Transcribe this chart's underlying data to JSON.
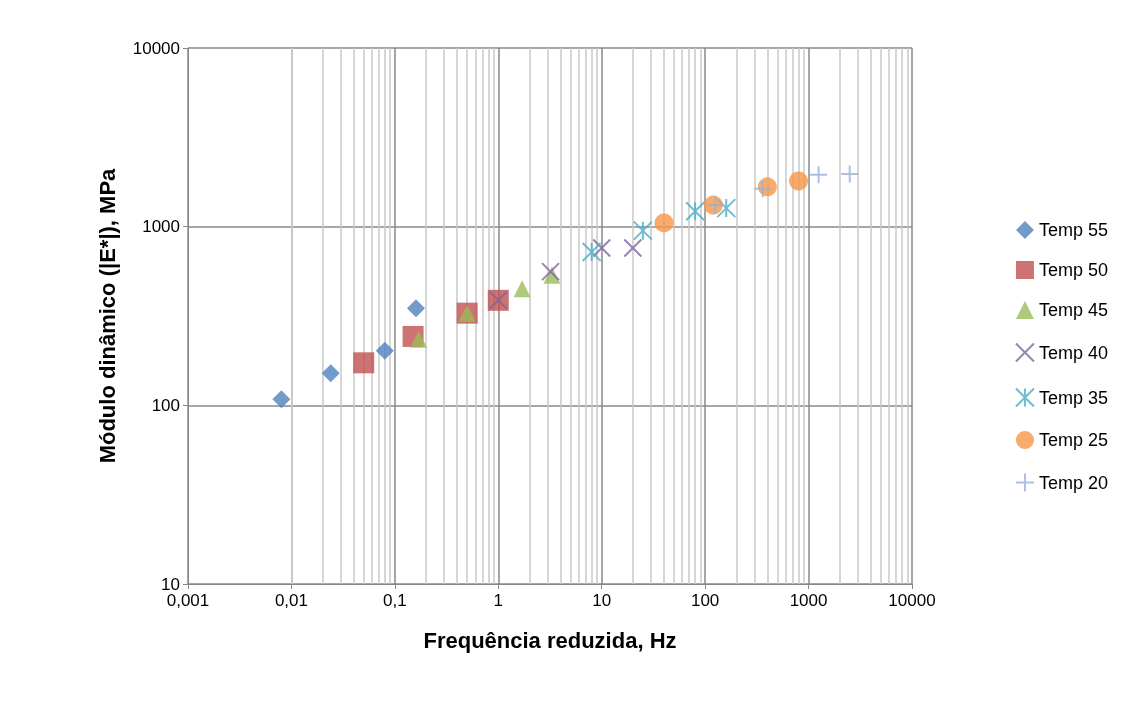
{
  "chart_data": {
    "type": "scatter",
    "xlabel": "Frequência reduzida, Hz",
    "ylabel": "Módulo dinâmico (|E*|), MPa",
    "log": "xy",
    "grid": true,
    "legend": "right",
    "xlim": [
      0.001,
      10000
    ],
    "xticks": [
      {
        "value": 0.001,
        "label": "0,001"
      },
      {
        "value": 0.01,
        "label": "0,01"
      },
      {
        "value": 0.1,
        "label": "0,1"
      },
      1,
      10,
      100,
      1000,
      10000
    ],
    "ylim": [
      10,
      10000
    ],
    "yticks": [
      10,
      100,
      1000,
      10000
    ],
    "series": [
      {
        "name": "Temp 55",
        "color": "#4f81bd",
        "marker": "diamond",
        "x": [
          0.008,
          0.024,
          0.08,
          0.16
        ],
        "values": [
          108,
          151,
          202,
          350
        ]
      },
      {
        "name": "Temp 50",
        "color": "#c0504d",
        "marker": "square",
        "x": [
          0.05,
          0.15,
          0.5,
          1
        ],
        "values": [
          173,
          243,
          328,
          387
        ]
      },
      {
        "name": "Temp 45",
        "color": "#9bbb59",
        "marker": "triangle",
        "x": [
          0.17,
          0.5,
          1.7,
          3.3
        ],
        "values": [
          234,
          328,
          450,
          535
        ]
      },
      {
        "name": "Temp 40",
        "color": "#8064a2",
        "marker": "x",
        "x": [
          1,
          3.2,
          10,
          20
        ],
        "values": [
          387,
          560,
          760,
          760
        ]
      },
      {
        "name": "Temp 35",
        "color": "#4bacc6",
        "x": [
          8,
          25,
          80,
          160
        ],
        "values": [
          722,
          950,
          1220,
          1270
        ]
      },
      {
        "name": "Temp 25",
        "color": "#f79646",
        "marker": "circle",
        "x": [
          40,
          120,
          400,
          800
        ],
        "values": [
          1050,
          1320,
          1670,
          1800
        ]
      },
      {
        "name": "Temp 20",
        "color": "#95b3d7",
        "marker": "cross",
        "x": [
          125,
          360,
          1250,
          2500
        ],
        "values": [
          1320,
          1630,
          1950,
          1970
        ]
      }
    ]
  }
}
